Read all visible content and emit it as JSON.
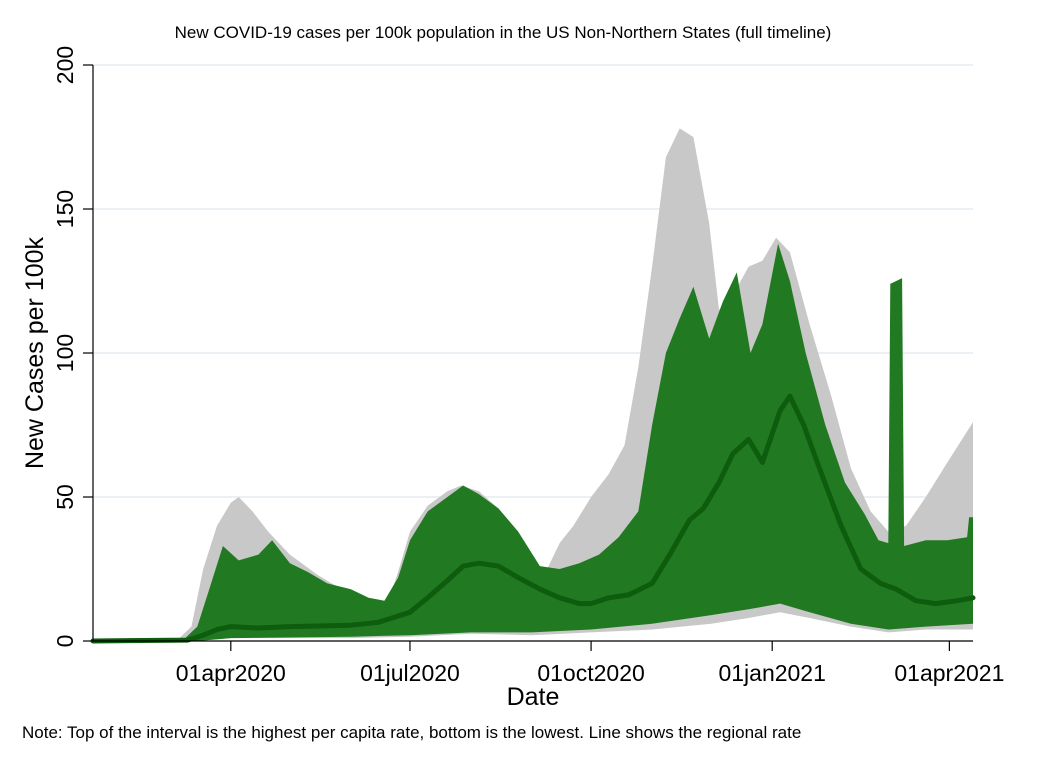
{
  "chart_data": {
    "type": "area",
    "title": "New COVID-19 cases per 100k population in the US Non-Northern States (full timeline)",
    "xlabel": "Date",
    "ylabel": "New Cases per 100k",
    "note": "Note: Top of the interval is the highest per capita rate, bottom is the lowest. Line shows the regional rate",
    "ylim": [
      0,
      200
    ],
    "yticks": [
      0,
      50,
      100,
      150,
      200
    ],
    "xlim": [
      "2020-01-22",
      "2021-04-13"
    ],
    "xticks": [
      {
        "date": "2020-04-01",
        "label": "01apr2020"
      },
      {
        "date": "2020-07-01",
        "label": "01jul2020"
      },
      {
        "date": "2020-10-01",
        "label": "01oct2020"
      },
      {
        "date": "2021-01-01",
        "label": "01jan2021"
      },
      {
        "date": "2021-04-01",
        "label": "01apr2021"
      }
    ],
    "grid": true,
    "colors": {
      "overall_range": "#c8c8c8",
      "regional_range": "#217a21",
      "regional_line": "#0e5c0e"
    },
    "series": [
      {
        "role": "overall_max",
        "points": [
          [
            "2020-01-22",
            0
          ],
          [
            "2020-03-05",
            0.5
          ],
          [
            "2020-03-12",
            5
          ],
          [
            "2020-03-18",
            25
          ],
          [
            "2020-03-25",
            40
          ],
          [
            "2020-04-01",
            48
          ],
          [
            "2020-04-05",
            50
          ],
          [
            "2020-04-12",
            45
          ],
          [
            "2020-04-20",
            38
          ],
          [
            "2020-05-01",
            30
          ],
          [
            "2020-05-15",
            23
          ],
          [
            "2020-06-01",
            16
          ],
          [
            "2020-06-10",
            13
          ],
          [
            "2020-06-20",
            14
          ],
          [
            "2020-06-25",
            24
          ],
          [
            "2020-07-01",
            38
          ],
          [
            "2020-07-10",
            47
          ],
          [
            "2020-07-20",
            52
          ],
          [
            "2020-07-27",
            54
          ],
          [
            "2020-08-05",
            52
          ],
          [
            "2020-08-15",
            46
          ],
          [
            "2020-08-25",
            37
          ],
          [
            "2020-09-01",
            28
          ],
          [
            "2020-09-08",
            24
          ],
          [
            "2020-09-15",
            34
          ],
          [
            "2020-09-22",
            40
          ],
          [
            "2020-10-01",
            50
          ],
          [
            "2020-10-10",
            58
          ],
          [
            "2020-10-18",
            68
          ],
          [
            "2020-10-25",
            95
          ],
          [
            "2020-11-01",
            130
          ],
          [
            "2020-11-08",
            168
          ],
          [
            "2020-11-15",
            178
          ],
          [
            "2020-11-22",
            175
          ],
          [
            "2020-11-30",
            145
          ],
          [
            "2020-12-05",
            115
          ],
          [
            "2020-12-12",
            120
          ],
          [
            "2020-12-20",
            130
          ],
          [
            "2020-12-27",
            132
          ],
          [
            "2021-01-03",
            140
          ],
          [
            "2021-01-10",
            135
          ],
          [
            "2021-01-20",
            110
          ],
          [
            "2021-01-31",
            85
          ],
          [
            "2021-02-10",
            60
          ],
          [
            "2021-02-20",
            45
          ],
          [
            "2021-03-01",
            38
          ],
          [
            "2021-03-10",
            40
          ],
          [
            "2021-03-20",
            50
          ],
          [
            "2021-03-31",
            62
          ],
          [
            "2021-04-13",
            76
          ]
        ]
      },
      {
        "role": "regional_max",
        "points": [
          [
            "2020-01-22",
            0
          ],
          [
            "2020-03-08",
            0.5
          ],
          [
            "2020-03-15",
            5
          ],
          [
            "2020-03-22",
            20
          ],
          [
            "2020-03-28",
            33
          ],
          [
            "2020-04-05",
            28
          ],
          [
            "2020-04-15",
            30
          ],
          [
            "2020-04-22",
            35
          ],
          [
            "2020-05-01",
            27
          ],
          [
            "2020-05-10",
            24
          ],
          [
            "2020-05-20",
            20
          ],
          [
            "2020-06-01",
            18
          ],
          [
            "2020-06-10",
            15
          ],
          [
            "2020-06-18",
            14
          ],
          [
            "2020-06-25",
            22
          ],
          [
            "2020-07-01",
            35
          ],
          [
            "2020-07-10",
            45
          ],
          [
            "2020-07-20",
            50
          ],
          [
            "2020-07-28",
            54
          ],
          [
            "2020-08-05",
            51
          ],
          [
            "2020-08-15",
            46
          ],
          [
            "2020-08-25",
            38
          ],
          [
            "2020-09-05",
            26
          ],
          [
            "2020-09-15",
            25
          ],
          [
            "2020-09-25",
            27
          ],
          [
            "2020-10-05",
            30
          ],
          [
            "2020-10-15",
            36
          ],
          [
            "2020-10-25",
            45
          ],
          [
            "2020-11-01",
            75
          ],
          [
            "2020-11-08",
            100
          ],
          [
            "2020-11-15",
            112
          ],
          [
            "2020-11-22",
            123
          ],
          [
            "2020-11-30",
            105
          ],
          [
            "2020-12-07",
            118
          ],
          [
            "2020-12-14",
            128
          ],
          [
            "2020-12-21",
            100
          ],
          [
            "2020-12-27",
            110
          ],
          [
            "2021-01-04",
            138
          ],
          [
            "2021-01-10",
            125
          ],
          [
            "2021-01-18",
            100
          ],
          [
            "2021-01-28",
            75
          ],
          [
            "2021-02-07",
            55
          ],
          [
            "2021-02-17",
            44
          ],
          [
            "2021-02-24",
            35
          ],
          [
            "2021-03-01",
            34
          ],
          [
            "2021-03-02",
            124
          ],
          [
            "2021-03-08",
            126
          ],
          [
            "2021-03-09",
            33
          ],
          [
            "2021-03-20",
            35
          ],
          [
            "2021-03-31",
            35
          ],
          [
            "2021-04-10",
            36
          ],
          [
            "2021-04-11",
            43
          ],
          [
            "2021-04-13",
            43
          ]
        ]
      },
      {
        "role": "overall_min",
        "points": [
          [
            "2020-01-22",
            0
          ],
          [
            "2020-03-15",
            0
          ],
          [
            "2020-04-01",
            1
          ],
          [
            "2020-06-01",
            1
          ],
          [
            "2020-07-01",
            1.5
          ],
          [
            "2020-08-01",
            2.5
          ],
          [
            "2020-09-01",
            2
          ],
          [
            "2020-10-01",
            3
          ],
          [
            "2020-11-01",
            4
          ],
          [
            "2020-12-01",
            6
          ],
          [
            "2020-12-20",
            8
          ],
          [
            "2021-01-05",
            10
          ],
          [
            "2021-01-20",
            8
          ],
          [
            "2021-02-10",
            5
          ],
          [
            "2021-03-01",
            3
          ],
          [
            "2021-03-20",
            4
          ],
          [
            "2021-04-13",
            4
          ]
        ]
      },
      {
        "role": "regional_min",
        "points": [
          [
            "2020-01-22",
            0
          ],
          [
            "2020-03-15",
            0
          ],
          [
            "2020-04-01",
            1
          ],
          [
            "2020-06-01",
            1.5
          ],
          [
            "2020-07-01",
            2
          ],
          [
            "2020-08-01",
            3
          ],
          [
            "2020-09-01",
            3
          ],
          [
            "2020-10-01",
            4
          ],
          [
            "2020-11-01",
            6
          ],
          [
            "2020-12-01",
            9
          ],
          [
            "2020-12-20",
            11
          ],
          [
            "2021-01-05",
            13
          ],
          [
            "2021-01-20",
            10
          ],
          [
            "2021-02-10",
            6
          ],
          [
            "2021-03-01",
            4
          ],
          [
            "2021-03-20",
            5
          ],
          [
            "2021-04-13",
            6
          ]
        ]
      },
      {
        "role": "regional_rate",
        "points": [
          [
            "2020-01-22",
            0
          ],
          [
            "2020-03-10",
            0.3
          ],
          [
            "2020-03-18",
            2
          ],
          [
            "2020-03-25",
            4
          ],
          [
            "2020-04-01",
            5
          ],
          [
            "2020-04-15",
            4.5
          ],
          [
            "2020-05-01",
            5
          ],
          [
            "2020-06-01",
            5.5
          ],
          [
            "2020-06-15",
            6.5
          ],
          [
            "2020-07-01",
            10
          ],
          [
            "2020-07-10",
            15
          ],
          [
            "2020-07-20",
            21
          ],
          [
            "2020-07-28",
            26
          ],
          [
            "2020-08-05",
            27
          ],
          [
            "2020-08-15",
            26
          ],
          [
            "2020-08-25",
            22
          ],
          [
            "2020-09-05",
            18
          ],
          [
            "2020-09-15",
            15
          ],
          [
            "2020-09-25",
            13
          ],
          [
            "2020-10-01",
            13
          ],
          [
            "2020-10-10",
            15
          ],
          [
            "2020-10-20",
            16
          ],
          [
            "2020-11-01",
            20
          ],
          [
            "2020-11-10",
            30
          ],
          [
            "2020-11-20",
            42
          ],
          [
            "2020-11-27",
            46
          ],
          [
            "2020-12-05",
            55
          ],
          [
            "2020-12-12",
            65
          ],
          [
            "2020-12-20",
            70
          ],
          [
            "2020-12-27",
            62
          ],
          [
            "2021-01-05",
            80
          ],
          [
            "2021-01-10",
            85
          ],
          [
            "2021-01-17",
            75
          ],
          [
            "2021-01-25",
            60
          ],
          [
            "2021-02-05",
            40
          ],
          [
            "2021-02-15",
            25
          ],
          [
            "2021-02-25",
            20
          ],
          [
            "2021-03-05",
            18
          ],
          [
            "2021-03-15",
            14
          ],
          [
            "2021-03-25",
            13
          ],
          [
            "2021-04-05",
            14
          ],
          [
            "2021-04-13",
            15
          ]
        ]
      }
    ]
  }
}
